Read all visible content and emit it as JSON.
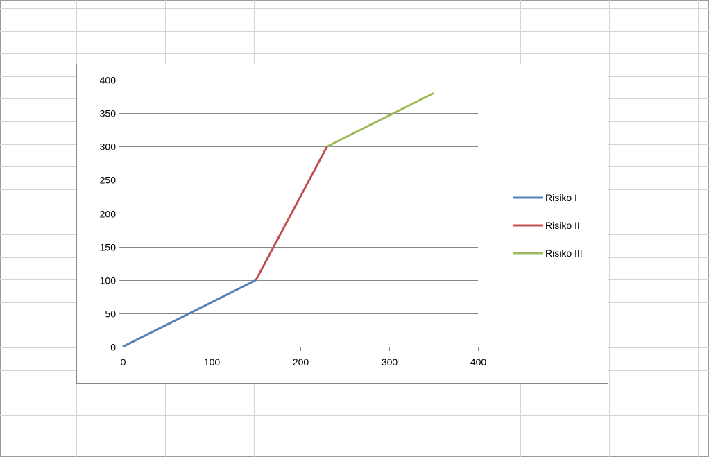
{
  "chart_data": {
    "type": "line",
    "title": "",
    "xlabel": "",
    "ylabel": "",
    "xlim": [
      0,
      400
    ],
    "ylim": [
      0,
      400
    ],
    "x_ticks": [
      "0",
      "100",
      "200",
      "300",
      "400"
    ],
    "y_ticks": [
      "0",
      "50",
      "100",
      "150",
      "200",
      "250",
      "300",
      "350",
      "400"
    ],
    "grid": "horizontal",
    "legend_position": "right",
    "series": [
      {
        "name": "Risiko I",
        "color": "#4f81bd",
        "points": [
          [
            0,
            0
          ],
          [
            150,
            100
          ]
        ]
      },
      {
        "name": "Risiko II",
        "color": "#c0504d",
        "points": [
          [
            150,
            100
          ],
          [
            230,
            300
          ]
        ]
      },
      {
        "name": "Risiko III",
        "color": "#9bbb59",
        "points": [
          [
            230,
            300
          ],
          [
            350,
            380
          ]
        ]
      }
    ]
  }
}
